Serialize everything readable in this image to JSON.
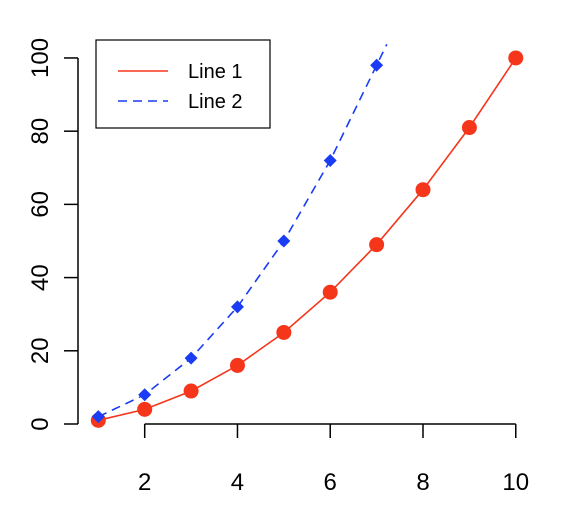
{
  "chart_data": {
    "type": "line",
    "title": "",
    "xlabel": "",
    "ylabel": "",
    "xlim": [
      0.95,
      10.35
    ],
    "ylim": [
      0,
      106
    ],
    "x_ticks": [
      2,
      4,
      6,
      8,
      10
    ],
    "y_ticks": [
      0,
      20,
      40,
      60,
      80,
      100
    ],
    "grid": false,
    "legend_position": "top-left",
    "series": [
      {
        "name": "Line 1",
        "color": "#F5361B",
        "line_style": "solid",
        "marker": "circle",
        "x": [
          1,
          2,
          3,
          4,
          5,
          6,
          7,
          8,
          9,
          10
        ],
        "y": [
          1,
          4,
          9,
          16,
          25,
          36,
          49,
          64,
          81,
          100
        ]
      },
      {
        "name": "Line 2",
        "color": "#1A3CF5",
        "line_style": "dashed",
        "marker": "diamond",
        "x": [
          1,
          2,
          3,
          4,
          5,
          6,
          7
        ],
        "y": [
          2,
          8,
          18,
          32,
          50,
          72,
          98
        ]
      }
    ]
  }
}
